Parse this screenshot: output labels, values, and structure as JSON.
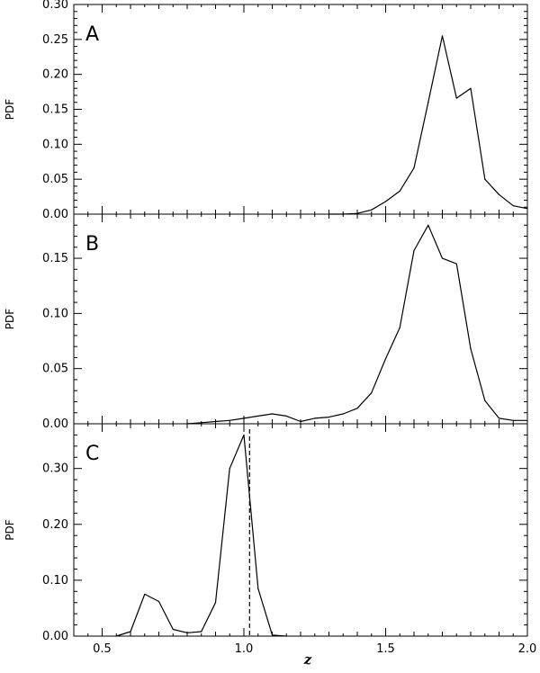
{
  "chart_data": [
    {
      "type": "line",
      "panel_label": "A",
      "ylabel": "PDF",
      "xlim": [
        0.4,
        2.0
      ],
      "ylim": [
        0.0,
        0.3
      ],
      "yticks": [
        "0.00",
        "0.05",
        "0.10",
        "0.15",
        "0.20",
        "0.25",
        "0.30"
      ],
      "x": [
        1.3,
        1.35,
        1.4,
        1.45,
        1.5,
        1.55,
        1.6,
        1.65,
        1.7,
        1.75,
        1.8,
        1.85,
        1.9,
        1.95,
        2.0
      ],
      "y": [
        0.0,
        0.0,
        0.001,
        0.006,
        0.018,
        0.033,
        0.066,
        0.16,
        0.255,
        0.166,
        0.18,
        0.05,
        0.028,
        0.012,
        0.008
      ]
    },
    {
      "type": "line",
      "panel_label": "B",
      "ylabel": "PDF",
      "xlim": [
        0.4,
        2.0
      ],
      "ylim": [
        0.0,
        0.19
      ],
      "yticks": [
        "0.00",
        "0.05",
        "0.10",
        "0.15"
      ],
      "x": [
        0.8,
        0.85,
        0.9,
        0.95,
        1.0,
        1.05,
        1.1,
        1.15,
        1.2,
        1.25,
        1.3,
        1.35,
        1.4,
        1.45,
        1.5,
        1.55,
        1.6,
        1.65,
        1.7,
        1.75,
        1.8,
        1.85,
        1.9,
        1.95,
        2.0
      ],
      "y": [
        0.0,
        0.001,
        0.002,
        0.003,
        0.005,
        0.007,
        0.009,
        0.007,
        0.002,
        0.005,
        0.006,
        0.009,
        0.014,
        0.028,
        0.059,
        0.087,
        0.157,
        0.18,
        0.15,
        0.145,
        0.068,
        0.021,
        0.005,
        0.003,
        0.003
      ]
    },
    {
      "type": "line",
      "panel_label": "C",
      "ylabel": "PDF",
      "xlim": [
        0.4,
        2.0
      ],
      "ylim": [
        0.0,
        0.38
      ],
      "yticks": [
        "0.00",
        "0.10",
        "0.20",
        "0.30"
      ],
      "x": [
        0.55,
        0.6,
        0.65,
        0.7,
        0.75,
        0.8,
        0.85,
        0.9,
        0.95,
        1.0,
        1.05,
        1.1,
        1.15
      ],
      "y": [
        0.0,
        0.008,
        0.075,
        0.062,
        0.012,
        0.006,
        0.008,
        0.06,
        0.3,
        0.36,
        0.085,
        0.002,
        0.0
      ],
      "marker_x": 1.02
    }
  ],
  "xaxis": {
    "label": "z",
    "ticks": [
      "0.5",
      "1.0",
      "1.5",
      "2.0"
    ],
    "tick_values": [
      0.5,
      1.0,
      1.5,
      2.0
    ]
  }
}
